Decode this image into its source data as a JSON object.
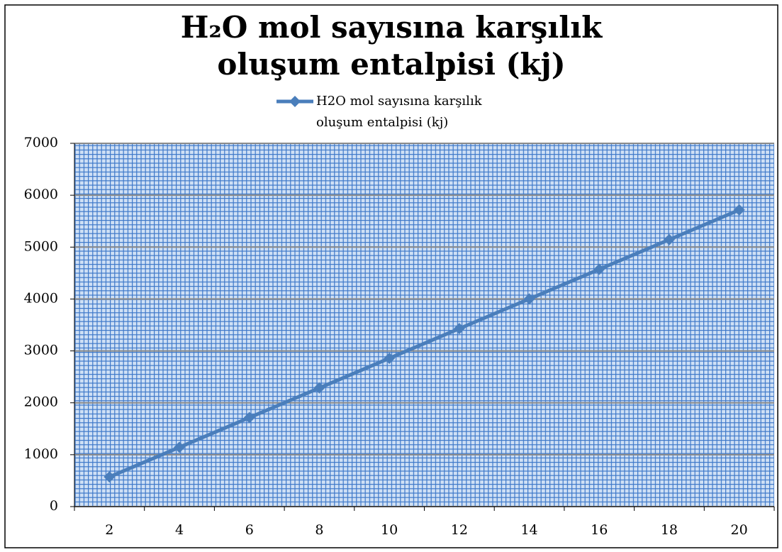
{
  "chart_data": {
    "type": "line",
    "title": "H₂O mol sayısına karşılık oluşum entalpisi (kj)",
    "categories": [
      "2",
      "4",
      "6",
      "8",
      "10",
      "12",
      "14",
      "16",
      "18",
      "20"
    ],
    "series": [
      {
        "name": "H2O mol sayısına karşılık oluşum entalpisi (kj)",
        "color": "#4a7ebb",
        "values": [
          572,
          1143,
          1715,
          2286,
          2858,
          3430,
          4001,
          4573,
          5144,
          5716
        ]
      }
    ],
    "ylim": [
      0,
      7000
    ],
    "yticks": [
      0,
      1000,
      2000,
      3000,
      4000,
      5000,
      6000,
      7000
    ],
    "grid": true,
    "legend": "top"
  }
}
